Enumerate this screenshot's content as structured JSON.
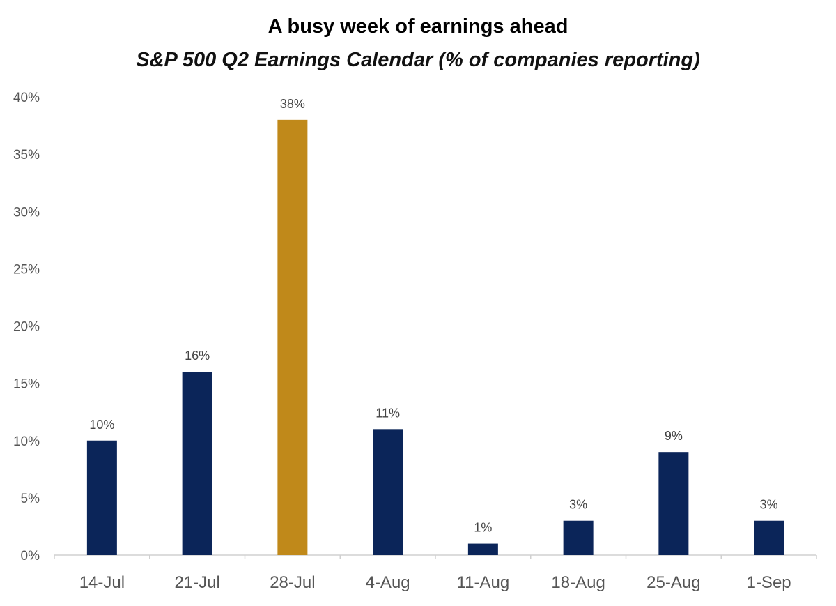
{
  "chart_data": {
    "type": "bar",
    "title": "A busy week of earnings ahead",
    "subtitle": "S&P 500 Q2 Earnings Calendar (% of companies reporting)",
    "categories": [
      "14-Jul",
      "21-Jul",
      "28-Jul",
      "4-Aug",
      "11-Aug",
      "18-Aug",
      "25-Aug",
      "1-Sep"
    ],
    "values": [
      10,
      16,
      38,
      11,
      1,
      3,
      9,
      3
    ],
    "data_labels": [
      "10%",
      "16%",
      "38%",
      "11%",
      "1%",
      "3%",
      "9%",
      "3%"
    ],
    "highlight_index": 2,
    "ylim": [
      0,
      40
    ],
    "yticks": [
      0,
      5,
      10,
      15,
      20,
      25,
      30,
      35,
      40
    ],
    "ytick_labels": [
      "0%",
      "5%",
      "10%",
      "15%",
      "20%",
      "25%",
      "30%",
      "35%",
      "40%"
    ],
    "xlabel": "",
    "ylabel": "",
    "grid": false,
    "colors": {
      "bar": "#0b2559",
      "highlight": "#c0891a",
      "axis": "#d0d0d0"
    }
  }
}
